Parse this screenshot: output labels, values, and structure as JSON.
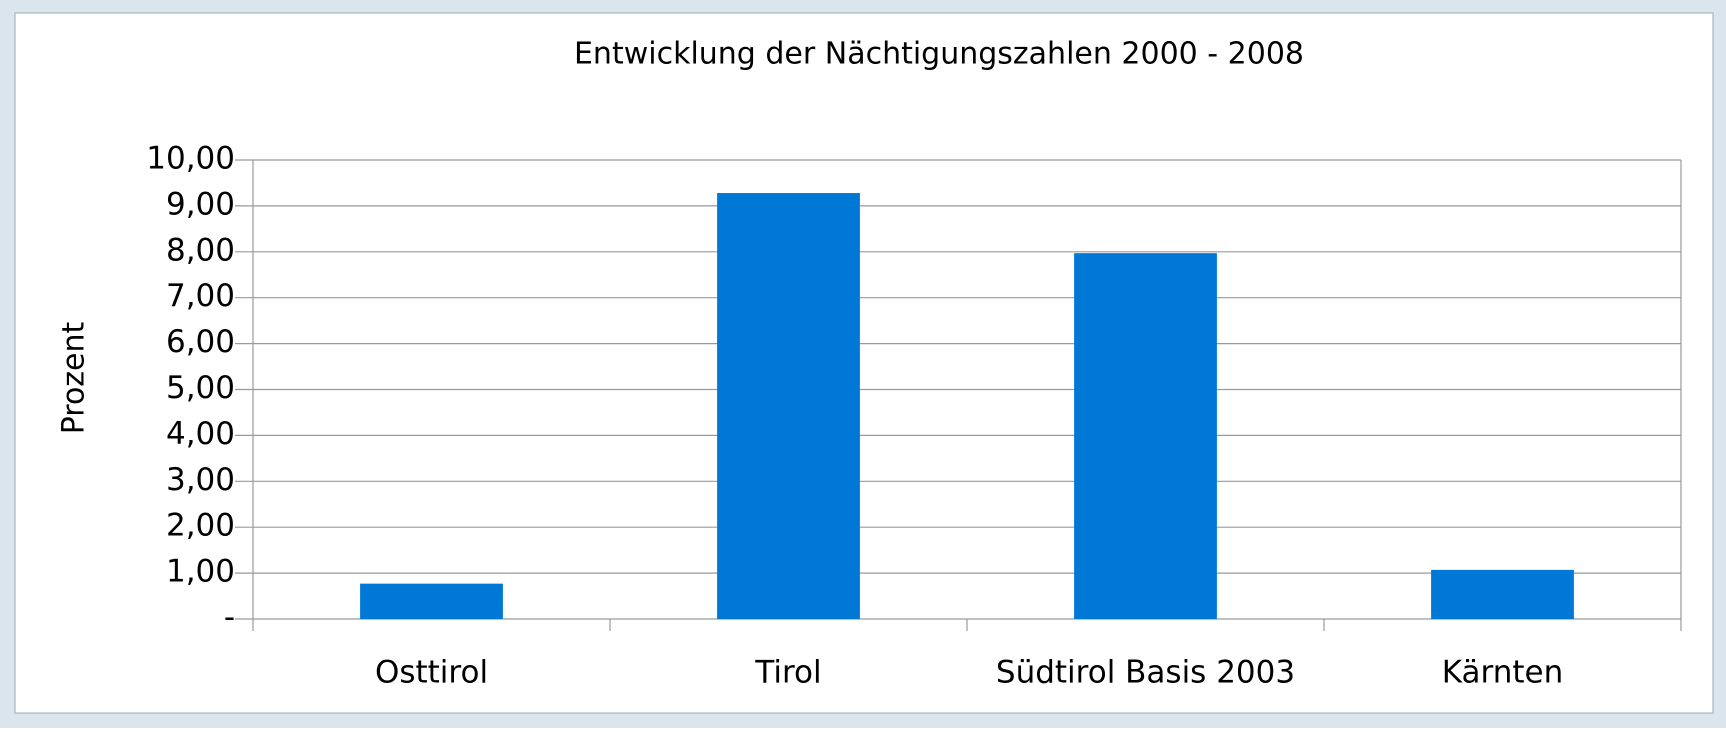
{
  "chart_data": {
    "type": "bar",
    "title": "Entwicklung der Nächtigungszahlen 2000 - 2008",
    "y_label": "Prozent",
    "categories": [
      "Osttirol",
      "Tirol",
      "Südtirol Basis 2003",
      "Kärnten"
    ],
    "values": [
      0.77,
      9.28,
      7.97,
      1.07
    ],
    "color": "#0079d6",
    "ylim": [
      0,
      10
    ],
    "yticks": [
      {
        "value": 0,
        "label": "-"
      },
      {
        "value": 1,
        "label": "1,00"
      },
      {
        "value": 2,
        "label": "2,00"
      },
      {
        "value": 3,
        "label": "3,00"
      },
      {
        "value": 4,
        "label": "4,00"
      },
      {
        "value": 5,
        "label": "5,00"
      },
      {
        "value": 6,
        "label": "6,00"
      },
      {
        "value": 7,
        "label": "7,00"
      },
      {
        "value": 8,
        "label": "8,00"
      },
      {
        "value": 9,
        "label": "9,00"
      },
      {
        "value": 10,
        "label": "10,00"
      }
    ],
    "grid": true
  }
}
